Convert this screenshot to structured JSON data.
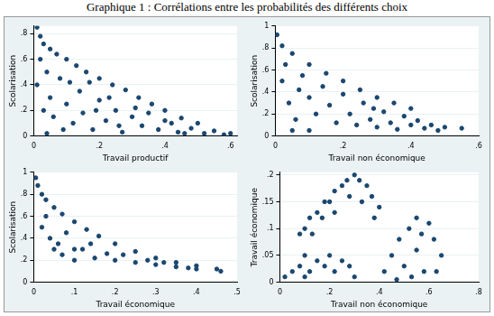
{
  "title": "Graphique 1 : Corrélations entre les probabilités des différents choix",
  "chart_data": [
    {
      "type": "scatter",
      "x_label": "Travail productif",
      "y_label": "Scolarisation",
      "color": "#1a476f",
      "marker": "circle",
      "grid": "y",
      "xlim": [
        0,
        0.62
      ],
      "ylim": [
        0,
        0.86
      ],
      "xticks": [
        0,
        {
          "value": 0.2,
          "label": ".2"
        },
        {
          "value": 0.4,
          "label": ".4"
        },
        {
          "value": 0.6,
          "label": ".6"
        }
      ],
      "yticks": [
        0,
        {
          "value": 0.2,
          "label": ".2"
        },
        {
          "value": 0.4,
          "label": ".4"
        },
        {
          "value": 0.6,
          "label": ".6"
        },
        {
          "value": 0.8,
          "label": ".8"
        }
      ],
      "x": [
        0.01,
        0.02,
        0.03,
        0.05,
        0.07,
        0.1,
        0.13,
        0.16,
        0.2,
        0.24,
        0.28,
        0.32,
        0.36,
        0.4,
        0.45,
        0.5,
        0.55,
        0.6,
        0.58,
        0.02,
        0.04,
        0.05,
        0.06,
        0.08,
        0.1,
        0.12,
        0.14,
        0.15,
        0.18,
        0.2,
        0.22,
        0.25,
        0.27,
        0.3,
        0.33,
        0.35,
        0.38,
        0.42,
        0.44,
        0.48,
        0.52,
        0.03,
        0.01,
        0.09,
        0.17,
        0.23,
        0.26,
        0.31,
        0.4,
        0.46,
        0.04,
        0.11,
        0.19
      ],
      "values": [
        0.85,
        0.78,
        0.72,
        0.68,
        0.64,
        0.6,
        0.55,
        0.5,
        0.45,
        0.4,
        0.36,
        0.3,
        0.25,
        0.2,
        0.14,
        0.1,
        0.04,
        0.02,
        0.01,
        0.6,
        0.5,
        0.3,
        0.15,
        0.45,
        0.25,
        0.1,
        0.35,
        0.18,
        0.05,
        0.28,
        0.12,
        0.2,
        0.03,
        0.15,
        0.08,
        0.18,
        0.05,
        0.1,
        0.03,
        0.06,
        0.02,
        0.2,
        0.4,
        0.05,
        0.42,
        0.3,
        0.08,
        0.22,
        0.12,
        0.02,
        0.02,
        0.42,
        0.2
      ]
    },
    {
      "type": "scatter",
      "x_label": "Travail non économique",
      "y_label": "Scolarisation",
      "color": "#1a476f",
      "marker": "circle",
      "grid": "y",
      "xlim": [
        0,
        0.6
      ],
      "ylim": [
        0,
        1
      ],
      "xticks": [
        0,
        {
          "value": 0.2,
          "label": ".2"
        },
        {
          "value": 0.4,
          "label": ".4"
        },
        {
          "value": 0.6,
          "label": ".6"
        }
      ],
      "yticks": [
        0,
        {
          "value": 0.2,
          "label": ".2"
        },
        {
          "value": 0.4,
          "label": ".4"
        },
        {
          "value": 0.6,
          "label": ".6"
        },
        {
          "value": 0.8,
          "label": ".8"
        },
        1
      ],
      "x": [
        0.005,
        0.02,
        0.05,
        0.1,
        0.15,
        0.2,
        0.25,
        0.3,
        0.35,
        0.4,
        0.55,
        0.02,
        0.04,
        0.06,
        0.08,
        0.1,
        0.12,
        0.14,
        0.16,
        0.18,
        0.2,
        0.22,
        0.24,
        0.26,
        0.28,
        0.3,
        0.32,
        0.34,
        0.36,
        0.38,
        0.4,
        0.42,
        0.44,
        0.46,
        0.48,
        0.5,
        0.03,
        0.07,
        0.1,
        0.05,
        0.29
      ],
      "values": [
        0.92,
        0.82,
        0.75,
        0.65,
        0.57,
        0.5,
        0.42,
        0.35,
        0.3,
        0.25,
        0.07,
        0.5,
        0.3,
        0.15,
        0.55,
        0.35,
        0.2,
        0.45,
        0.28,
        0.12,
        0.38,
        0.2,
        0.1,
        0.3,
        0.15,
        0.08,
        0.22,
        0.12,
        0.06,
        0.18,
        0.1,
        0.14,
        0.07,
        0.1,
        0.05,
        0.08,
        0.65,
        0.42,
        0.05,
        0.05,
        0.25
      ]
    },
    {
      "type": "scatter",
      "x_label": "Travail économique",
      "y_label": "Scolarisation",
      "color": "#1a476f",
      "marker": "circle",
      "grid": "y",
      "xlim": [
        0,
        0.5
      ],
      "ylim": [
        0,
        1
      ],
      "xticks": [
        0,
        {
          "value": 0.1,
          "label": ".1"
        },
        {
          "value": 0.2,
          "label": ".2"
        },
        {
          "value": 0.3,
          "label": ".3"
        },
        {
          "value": 0.4,
          "label": ".4"
        },
        {
          "value": 0.5,
          "label": ".5"
        }
      ],
      "yticks": [
        0,
        {
          "value": 0.2,
          "label": ".2"
        },
        {
          "value": 0.4,
          "label": ".4"
        },
        {
          "value": 0.6,
          "label": ".6"
        },
        {
          "value": 0.8,
          "label": ".8"
        },
        1
      ],
      "x": [
        0.005,
        0.01,
        0.02,
        0.03,
        0.05,
        0.07,
        0.1,
        0.13,
        0.16,
        0.2,
        0.25,
        0.3,
        0.35,
        0.4,
        0.45,
        0.46,
        0.02,
        0.04,
        0.05,
        0.07,
        0.1,
        0.12,
        0.15,
        0.18,
        0.2,
        0.22,
        0.25,
        0.28,
        0.3,
        0.32,
        0.35,
        0.38,
        0.4,
        0.08,
        0.03,
        0.06,
        0.14,
        0.1
      ],
      "values": [
        0.95,
        0.88,
        0.8,
        0.75,
        0.68,
        0.62,
        0.55,
        0.48,
        0.42,
        0.35,
        0.28,
        0.22,
        0.18,
        0.15,
        0.12,
        0.1,
        0.5,
        0.4,
        0.3,
        0.25,
        0.2,
        0.3,
        0.22,
        0.26,
        0.2,
        0.25,
        0.18,
        0.2,
        0.16,
        0.18,
        0.14,
        0.13,
        0.12,
        0.45,
        0.6,
        0.35,
        0.35,
        0.3
      ]
    },
    {
      "type": "scatter",
      "x_label": "Travail non économique",
      "y_label": "Travail économique",
      "color": "#1a476f",
      "marker": "circle",
      "grid": "y",
      "xlim": [
        0,
        0.8
      ],
      "ylim": [
        0,
        0.205
      ],
      "xticks": [
        0,
        {
          "value": 0.2,
          "label": ".2"
        },
        {
          "value": 0.4,
          "label": ".4"
        },
        {
          "value": 0.6,
          "label": ".6"
        },
        {
          "value": 0.8,
          "label": ".8"
        }
      ],
      "yticks": [
        0,
        {
          "value": 0.05,
          "label": ".05"
        },
        {
          "value": 0.1,
          "label": ".1"
        },
        {
          "value": 0.15,
          "label": ".15"
        },
        {
          "value": 0.2,
          "label": ".2"
        }
      ],
      "x": [
        0.02,
        0.05,
        0.08,
        0.1,
        0.12,
        0.15,
        0.18,
        0.2,
        0.22,
        0.25,
        0.28,
        0.3,
        0.1,
        0.08,
        0.1,
        0.12,
        0.15,
        0.18,
        0.2,
        0.22,
        0.25,
        0.27,
        0.3,
        0.32,
        0.35,
        0.37,
        0.4,
        0.38,
        0.33,
        0.28,
        0.22,
        0.17,
        0.13,
        0.42,
        0.45,
        0.48,
        0.5,
        0.52,
        0.55,
        0.57,
        0.6,
        0.62,
        0.65,
        0.58,
        0.53,
        0.47,
        0.63,
        0.55
      ],
      "values": [
        0.01,
        0.02,
        0.03,
        0.05,
        0.02,
        0.04,
        0.03,
        0.05,
        0.02,
        0.04,
        0.03,
        0.01,
        0.01,
        0.09,
        0.1,
        0.12,
        0.13,
        0.15,
        0.15,
        0.17,
        0.18,
        0.19,
        0.2,
        0.19,
        0.18,
        0.16,
        0.14,
        0.12,
        0.15,
        0.16,
        0.13,
        0.12,
        0.09,
        0.02,
        0.05,
        0.08,
        0.03,
        0.1,
        0.06,
        0.09,
        0.11,
        0.08,
        0.05,
        0.02,
        0.01,
        0.005,
        0.02,
        0.12
      ]
    }
  ]
}
